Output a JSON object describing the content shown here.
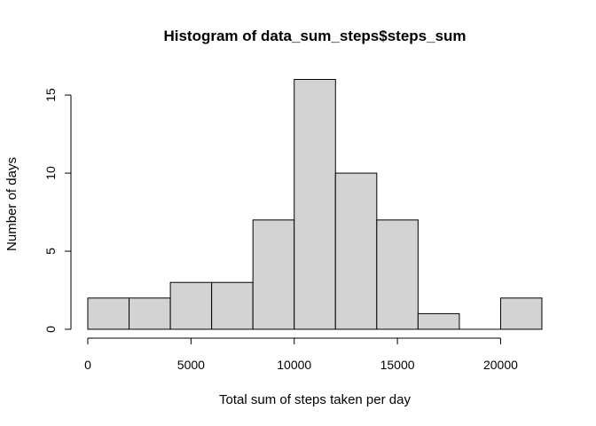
{
  "chart_data": {
    "type": "bar",
    "title": "Histogram of data_sum_steps$steps_sum",
    "xlabel": "Total sum of steps taken per day",
    "ylabel": "Number of days",
    "bins": [
      {
        "start": 0,
        "end": 2000,
        "count": 2
      },
      {
        "start": 2000,
        "end": 4000,
        "count": 2
      },
      {
        "start": 4000,
        "end": 6000,
        "count": 3
      },
      {
        "start": 6000,
        "end": 8000,
        "count": 3
      },
      {
        "start": 8000,
        "end": 10000,
        "count": 7
      },
      {
        "start": 10000,
        "end": 12000,
        "count": 16
      },
      {
        "start": 12000,
        "end": 14000,
        "count": 10
      },
      {
        "start": 14000,
        "end": 16000,
        "count": 7
      },
      {
        "start": 16000,
        "end": 18000,
        "count": 1
      },
      {
        "start": 18000,
        "end": 20000,
        "count": 0
      },
      {
        "start": 20000,
        "end": 22000,
        "count": 2
      }
    ],
    "xlim": [
      0,
      22000
    ],
    "ylim": [
      0,
      16
    ],
    "x_ticks": [
      0,
      5000,
      10000,
      15000,
      20000
    ],
    "y_ticks": [
      0,
      5,
      10,
      15
    ],
    "bar_color": "#d3d3d3",
    "grid": false,
    "legend": "none"
  }
}
